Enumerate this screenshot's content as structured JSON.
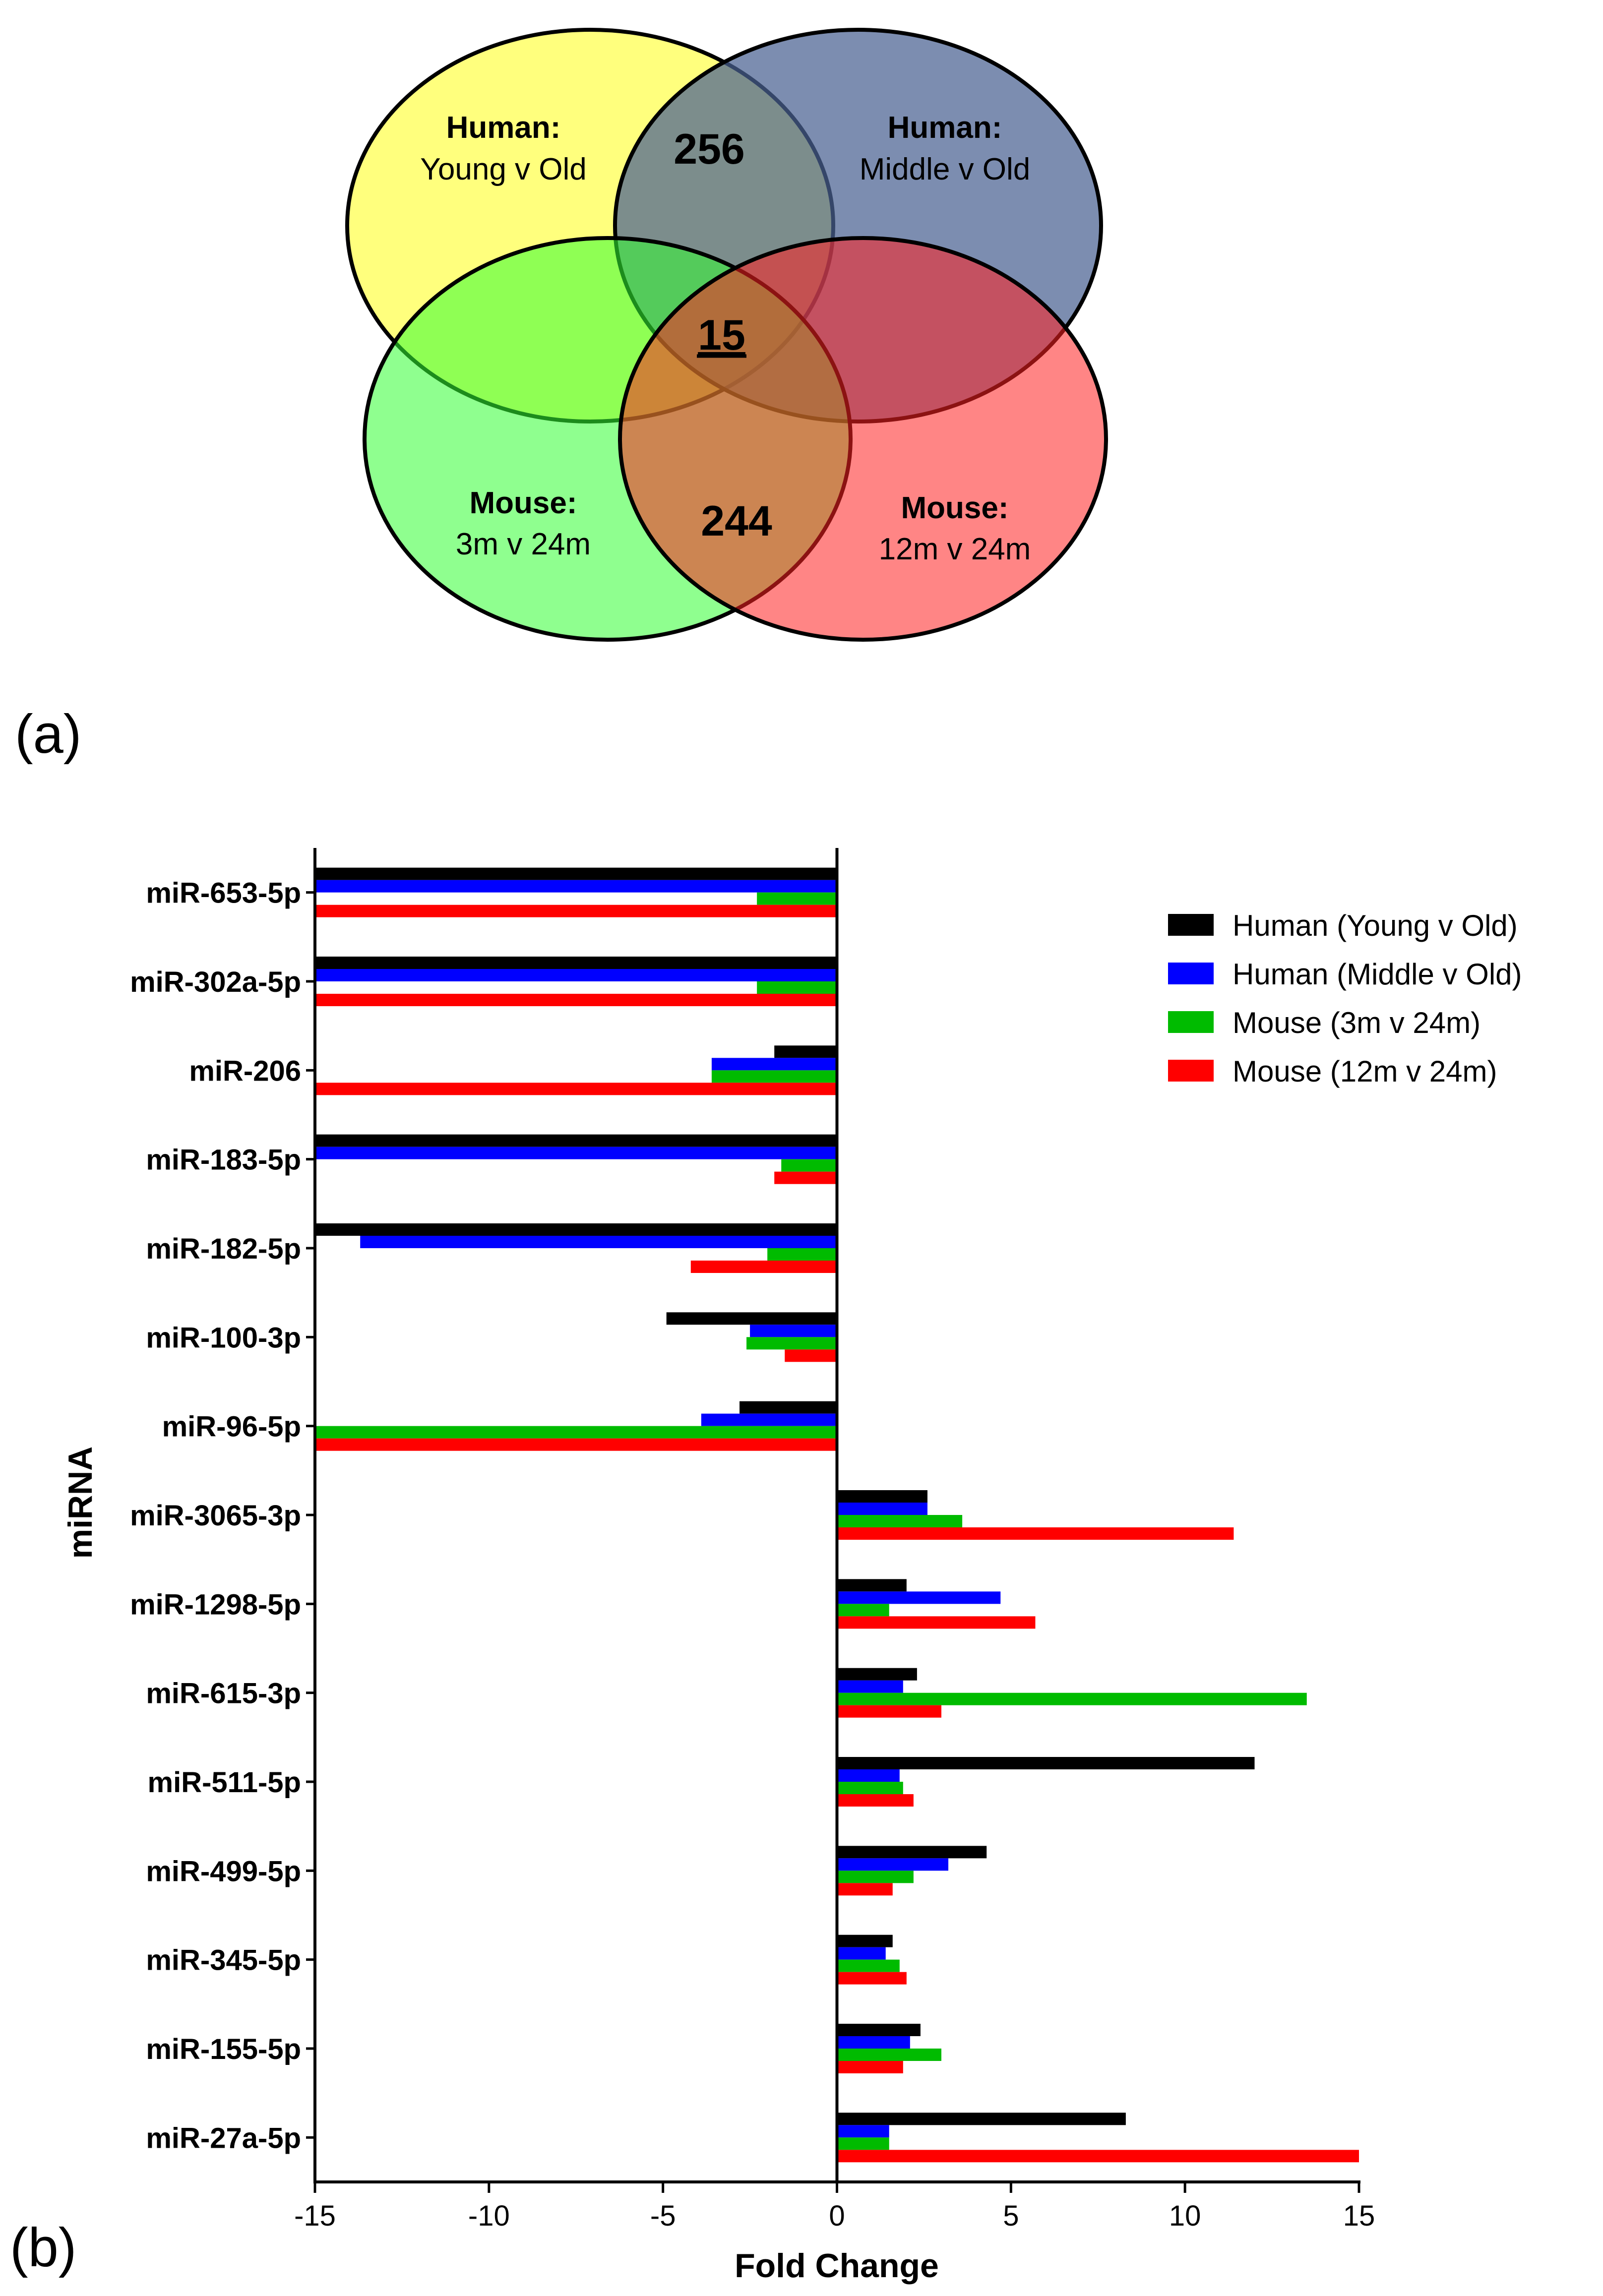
{
  "panel_a": {
    "panel_label": "(a)",
    "sets": [
      {
        "name_bold": "Human:",
        "name": "Young v Old",
        "color": "#FFFF66"
      },
      {
        "name_bold": "Human:",
        "name": "Middle v Old",
        "color": "#6B7EA6"
      },
      {
        "name_bold": "Mouse:",
        "name": "3m v 24m",
        "color": "#66FF66"
      },
      {
        "name_bold": "Mouse:",
        "name": "12m v 24m",
        "color": "#FF5555"
      }
    ],
    "counts": {
      "human_overlap": "256",
      "all_overlap": "15",
      "mouse_overlap": "244"
    }
  },
  "panel_b": {
    "panel_label": "(b)"
  },
  "chart_data": {
    "type": "bar",
    "orientation": "horizontal",
    "title": "",
    "xlabel": "Fold Change",
    "ylabel": "miRNA",
    "xlim": [
      -15,
      15
    ],
    "xticks": [
      -15,
      -10,
      -5,
      0,
      5,
      10,
      15
    ],
    "legend_position": "top-right",
    "categories": [
      "miR-653-5p",
      "miR-302a-5p",
      "miR-206",
      "miR-183-5p",
      "miR-182-5p",
      "miR-100-3p",
      "miR-96-5p",
      "miR-3065-3p",
      "miR-1298-5p",
      "miR-615-3p",
      "miR-511-5p",
      "miR-499-5p",
      "miR-345-5p",
      "miR-155-5p",
      "miR-27a-5p"
    ],
    "series": [
      {
        "name": "Human (Young v Old)",
        "color": "#000000",
        "values": [
          -15,
          -15,
          -1.8,
          -15,
          -15,
          -4.9,
          -2.8,
          2.6,
          2.0,
          2.3,
          12.0,
          4.3,
          1.6,
          2.4,
          8.3
        ]
      },
      {
        "name": "Human (Middle v Old)",
        "color": "#0000FF",
        "values": [
          -15,
          -15,
          -3.6,
          -15,
          -13.7,
          -2.5,
          -3.9,
          2.6,
          4.7,
          1.9,
          1.8,
          3.2,
          1.4,
          2.1,
          1.5
        ]
      },
      {
        "name": "Mouse (3m v 24m)",
        "color": "#00BB00",
        "values": [
          -2.3,
          -2.3,
          -3.6,
          -1.6,
          -2.0,
          -2.6,
          -15,
          3.6,
          1.5,
          13.5,
          1.9,
          2.2,
          1.8,
          3.0,
          1.5
        ]
      },
      {
        "name": "Mouse (12m v 24m)",
        "color": "#FF0000",
        "values": [
          -15,
          -15,
          -15,
          -1.8,
          -4.2,
          -1.5,
          -15,
          11.4,
          5.7,
          3.0,
          2.2,
          1.6,
          2.0,
          1.9,
          15.0
        ]
      }
    ]
  }
}
